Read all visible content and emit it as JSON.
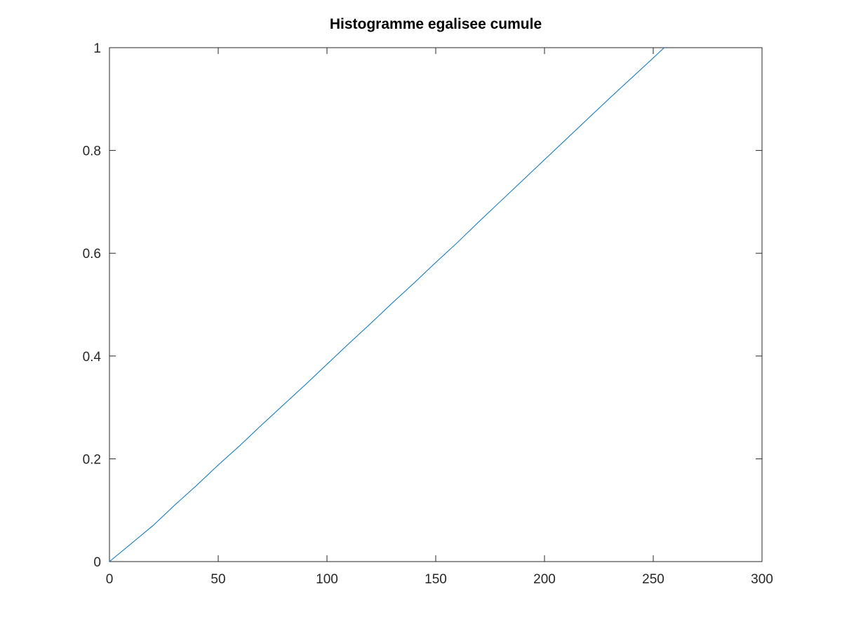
{
  "chart_data": {
    "type": "line",
    "title": "Histogramme egalisee cumule",
    "xlabel": "",
    "ylabel": "",
    "xlim": [
      0,
      300
    ],
    "ylim": [
      0,
      1
    ],
    "x_ticks": [
      0,
      50,
      100,
      150,
      200,
      250,
      300
    ],
    "x_tick_labels": [
      "0",
      "50",
      "100",
      "150",
      "200",
      "250",
      "300"
    ],
    "y_ticks": [
      0,
      0.2,
      0.4,
      0.6,
      0.8,
      1
    ],
    "y_tick_labels": [
      "0",
      "0.2",
      "0.4",
      "0.6",
      "0.8",
      "1"
    ],
    "grid": false,
    "series": [
      {
        "color": "#0072bd",
        "x": [
          0,
          10,
          20,
          30,
          40,
          50,
          60,
          70,
          80,
          90,
          100,
          110,
          120,
          130,
          140,
          150,
          160,
          170,
          180,
          190,
          200,
          210,
          220,
          230,
          240,
          250,
          255
        ],
        "values": [
          0,
          0.035,
          0.07,
          0.11,
          0.148,
          0.188,
          0.226,
          0.266,
          0.305,
          0.344,
          0.384,
          0.424,
          0.463,
          0.503,
          0.542,
          0.582,
          0.621,
          0.662,
          0.702,
          0.742,
          0.782,
          0.822,
          0.862,
          0.902,
          0.941,
          0.98,
          1.0
        ]
      }
    ]
  }
}
